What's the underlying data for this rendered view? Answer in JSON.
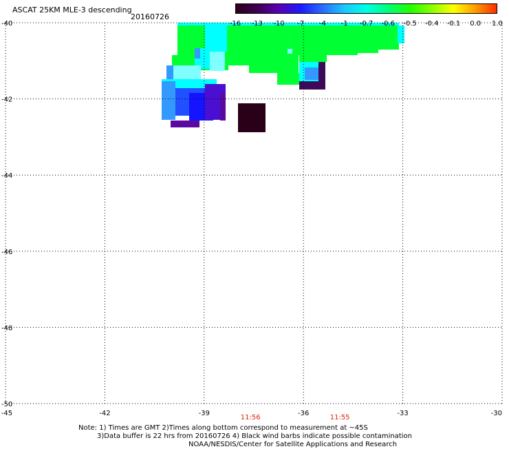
{
  "title": "ASCAT 25KM MLE-3 descending",
  "date": "20160726",
  "colorbar": {
    "ticks": [
      "-16",
      "-13",
      "-10",
      "-7",
      "-4",
      "-1",
      "-0.7",
      "-0.6",
      "-0.5",
      "-0.4",
      "-0.1",
      "0.0",
      "1.0"
    ],
    "colors": [
      "#2a0018",
      "#3d0050",
      "#5a00b4",
      "#1a1aff",
      "#2a6cff",
      "#19c8ff",
      "#00ffe6",
      "#00ff7a",
      "#22ff00",
      "#8aff00",
      "#ffff00",
      "#ff9a00",
      "#ff2a00"
    ]
  },
  "map": {
    "lat_labels": [
      "-40",
      "-42",
      "-44",
      "-46",
      "-48",
      "-50"
    ],
    "lon_labels": [
      "-45",
      "-42",
      "-39",
      "-36",
      "-33",
      "-30"
    ],
    "time_labels": [
      {
        "text": "11:56",
        "lon": -37.6
      },
      {
        "text": "11:55",
        "lon": -34.9
      }
    ],
    "colors": {
      "green": "#00ff33",
      "cyan": "#00ffff",
      "lightcyan": "#7fffff",
      "midblue": "#3399ff",
      "blue": "#2050ff",
      "deepblue": "#1414ff",
      "indigo": "#4a0fd0",
      "purple": "#5a0aa0",
      "darkpurple": "#3d0a5a",
      "black": "#2a0018"
    }
  },
  "notes": {
    "line1": "Note: 1) Times are GMT 2)Times along bottom correspond to measurement at ~45S",
    "line2": "3)Data buffer is 22 hrs from 20160726 4) Black wind barbs indicate possible contamination",
    "line3": "NOAA/NESDIS/Center for Satellite Applications and Research"
  }
}
